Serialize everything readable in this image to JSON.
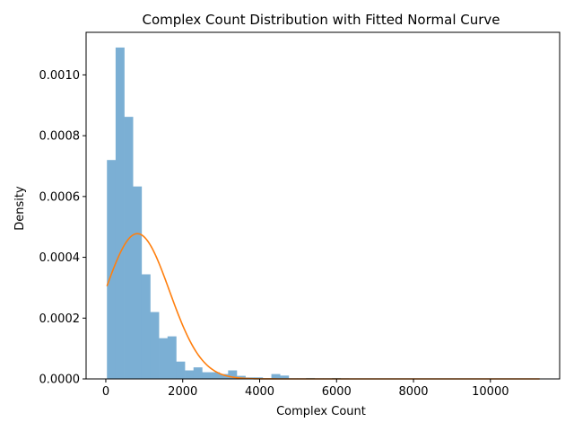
{
  "chart_data": {
    "type": "bar",
    "title": "Complex Count Distribution with Fitted Normal Curve",
    "xlabel": "Complex Count",
    "ylabel": "Density",
    "xlim": [
      -512,
      11800
    ],
    "ylim": [
      0,
      0.00114
    ],
    "x_ticks": [
      0,
      2000,
      4000,
      6000,
      8000,
      10000
    ],
    "y_ticks": [
      0.0,
      0.0002,
      0.0004,
      0.0006,
      0.0008,
      0.001
    ],
    "y_tick_labels": [
      "0.0000",
      "0.0002",
      "0.0004",
      "0.0006",
      "0.0008",
      "0.0010"
    ],
    "grid": false,
    "histogram": {
      "name": "Complex Count",
      "color": "#7bafd4",
      "bin_start": 30,
      "bin_width": 225,
      "densities": [
        0.00072,
        0.00109,
        0.000862,
        0.000633,
        0.000344,
        0.00022,
        0.000134,
        0.00014,
        5.7e-05,
        2.8e-05,
        3.8e-05,
        2.2e-05,
        2.2e-05,
        1.6e-05,
        2.8e-05,
        1e-05,
        5e-06,
        5e-06,
        2e-06,
        1.6e-05,
        1.1e-05,
        2e-06,
        2e-06,
        3e-06,
        2e-06,
        2e-06,
        3e-06,
        2e-06,
        0,
        0,
        0,
        0,
        0,
        0,
        0,
        0,
        0,
        0,
        0,
        0,
        0,
        0,
        0,
        0,
        0,
        0,
        0,
        0,
        0,
        0
      ]
    },
    "fitted_curve": {
      "name": "Fitted Normal",
      "color": "#ff7f0e",
      "mean": 820,
      "std": 835,
      "x_range": [
        30,
        11280
      ]
    }
  }
}
